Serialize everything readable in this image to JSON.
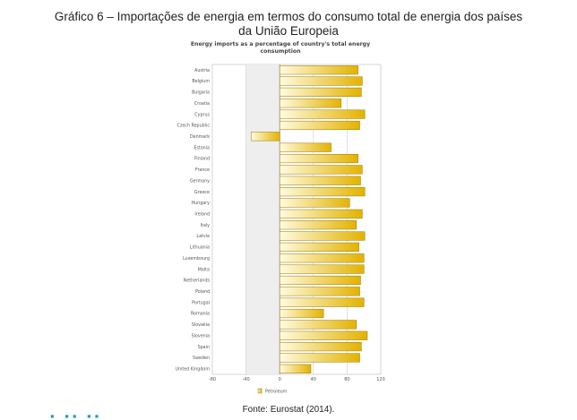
{
  "figure": {
    "title_line1": "Gráfico 6 – Importações de energia em termos do consumo total de energia dos países",
    "title_line2": "da União Europeia",
    "source": "Fonte: Eurostat (2014)."
  },
  "chart_data": {
    "type": "bar",
    "orientation": "horizontal",
    "title_line1": "Energy imports as a percentage of country's total energy",
    "title_line2": "consumption",
    "categories": [
      "Austria",
      "Belgium",
      "Bulgaria",
      "Croatia",
      "Cyprus",
      "Czech Republic",
      "Denmark",
      "Estonia",
      "Finland",
      "France",
      "Germany",
      "Greece",
      "Hungary",
      "Ireland",
      "Italy",
      "Latvia",
      "Lithuania",
      "Luxembourg",
      "Malta",
      "Netherlands",
      "Poland",
      "Portugal",
      "Romania",
      "Slovakia",
      "Slovenia",
      "Spain",
      "Sweden",
      "United Kingdom"
    ],
    "series": [
      {
        "name": "Petroleum",
        "values": [
          93,
          98,
          97,
          73,
          101,
          95,
          -34,
          61,
          93,
          98,
          96,
          101,
          83,
          98,
          91,
          101,
          94,
          100,
          100,
          96,
          95,
          100,
          52,
          91,
          104,
          97,
          95,
          37
        ]
      }
    ],
    "xlim": [
      -80,
      120
    ],
    "xticks": [
      -80,
      -40,
      0,
      40,
      80,
      120
    ],
    "grid": true,
    "legend_position": "bottom-center",
    "colors": {
      "bar_fill_start": "#fffbe0",
      "bar_fill_end": "#e3b300",
      "bar_stroke": "#9a7700",
      "shaded_band": "#eeeeee"
    }
  }
}
